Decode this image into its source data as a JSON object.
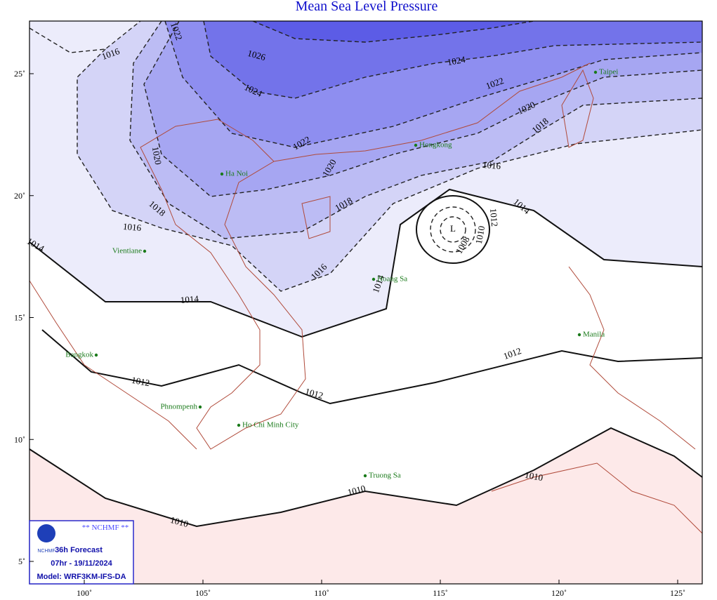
{
  "title": "Mean Sea Level Pressure",
  "map": {
    "lon_ticks": [
      {
        "value": 100,
        "label": "100˚"
      },
      {
        "value": 105,
        "label": "105˚"
      },
      {
        "value": 110,
        "label": "110˚"
      },
      {
        "value": 115,
        "label": "115˚"
      },
      {
        "value": 120,
        "label": "120˚"
      },
      {
        "value": 125,
        "label": "125˚"
      }
    ],
    "lat_ticks": [
      {
        "value": 5,
        "label": "5˚"
      },
      {
        "value": 10,
        "label": "10˚"
      },
      {
        "value": 15,
        "label": "15˚"
      },
      {
        "value": 20,
        "label": "20˚"
      },
      {
        "value": 25,
        "label": "25˚"
      }
    ],
    "contour_labels": [
      "1016",
      "1022",
      "1026",
      "1024",
      "1024",
      "1022",
      "1020",
      "1018",
      "1022",
      "1020",
      "1020",
      "1018",
      "1018",
      "1016",
      "1016",
      "1016",
      "1014",
      "1014",
      "1014",
      "1014",
      "1012",
      "1012",
      "1012",
      "1012",
      "1010",
      "1008",
      "L",
      "1010",
      "1010",
      "1010"
    ],
    "cities": [
      "Taipei",
      "Hongkong",
      "Ha Noi",
      "Vientiane",
      "Hoang Sa",
      "Manila",
      "Bangkok",
      "Phnompenh",
      "Ho Chi Minh City",
      "Truong Sa"
    ]
  },
  "legend": {
    "agency": "** NCHMF **",
    "logo": "NCHMF",
    "forecast": "36h Forecast",
    "time": "07hr - 19/11/2024",
    "model": "Model: WRF3KM-IFS-DA"
  }
}
